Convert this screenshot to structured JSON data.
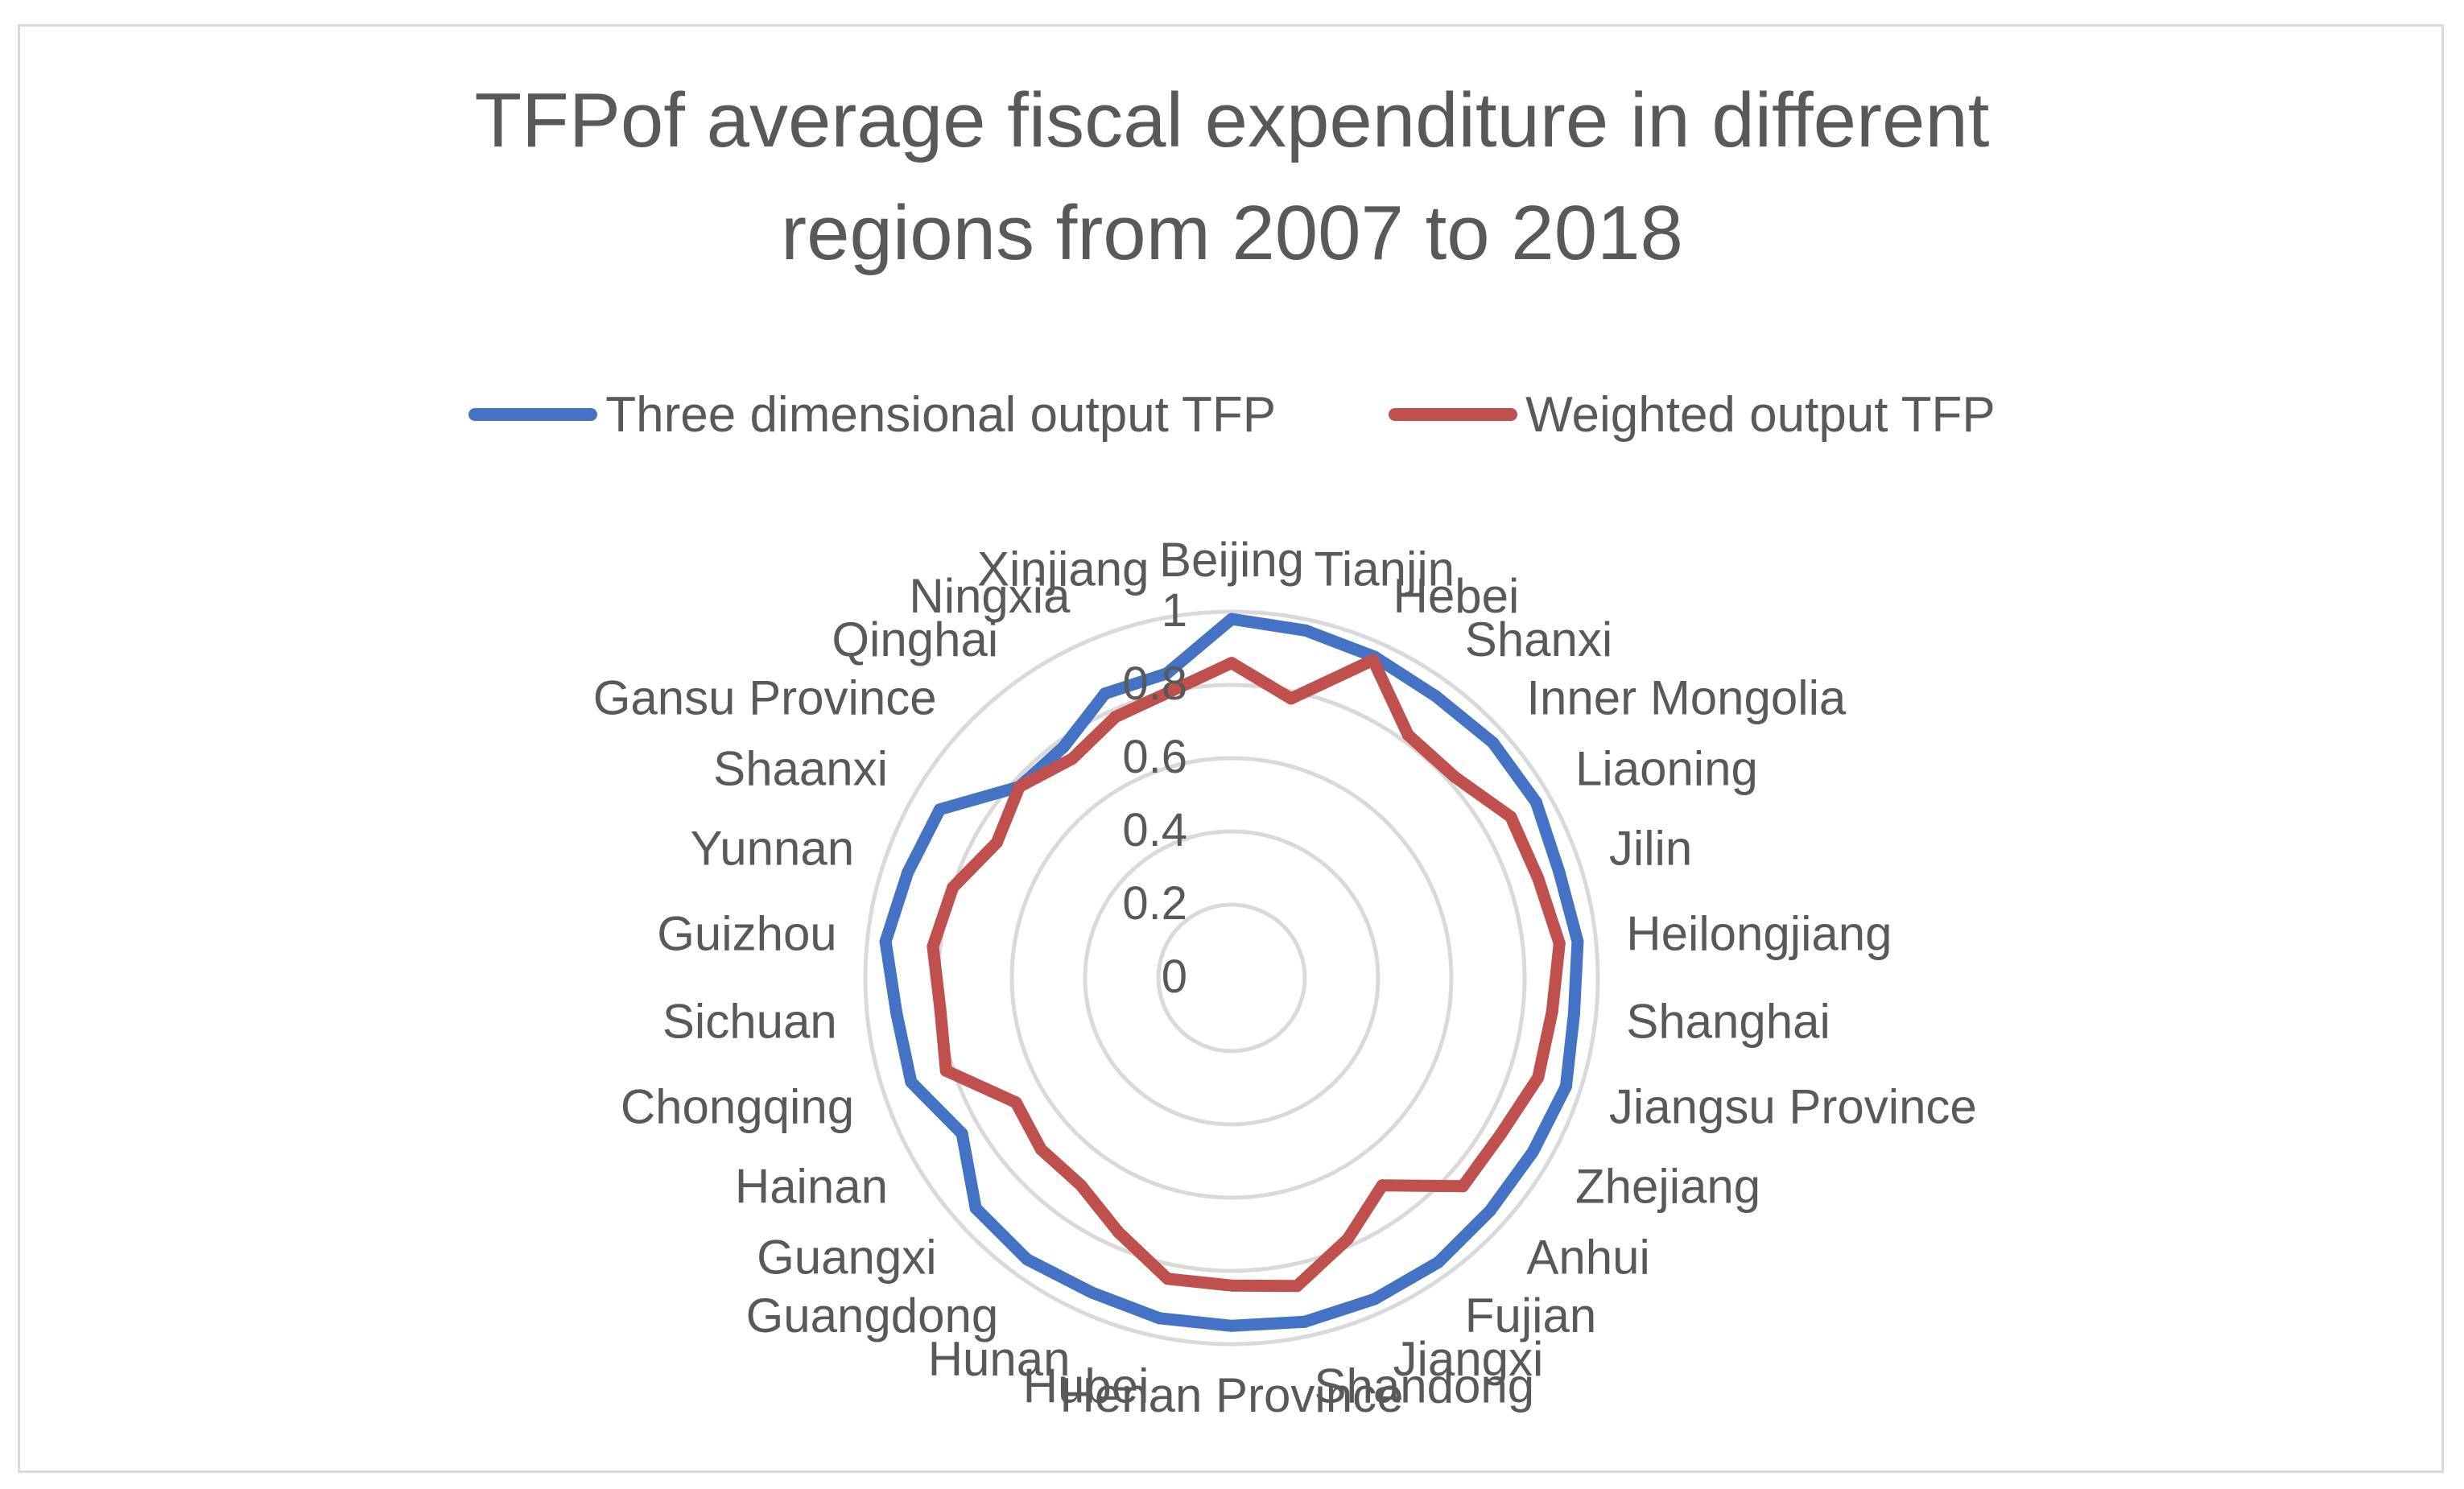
{
  "chart_data": {
    "type": "radar",
    "title_lines": [
      "TFPof average fiscal expenditure in different",
      "regions from 2007 to 2018"
    ],
    "categories": [
      "Beijing",
      "Tianjin",
      "Hebei",
      "Shanxi",
      "Inner Mongolia",
      "Liaoning",
      "Jilin",
      "Heilongjiang",
      "Shanghai",
      "Jiangsu Province",
      "Zhejiang",
      "Anhui",
      "Fujian",
      "Jiangxi",
      "Shandong",
      "Henan Province",
      "Hubei",
      "Hunan",
      "Guangdong",
      "Guangxi",
      "Hainan",
      "Chongqing",
      "Sichuan",
      "Guizhou",
      "Yunnan",
      "Shaanxi",
      "Gansu Province",
      "Qinghai",
      "Ningxia",
      "Xinjiang"
    ],
    "series": [
      {
        "name": "Three dimensional output TFP",
        "color": "#4472c4",
        "values": [
          0.98,
          0.97,
          0.96,
          0.95,
          0.96,
          0.96,
          0.94,
          0.95,
          0.94,
          0.96,
          0.95,
          0.95,
          0.96,
          0.96,
          0.96,
          0.95,
          0.95,
          0.94,
          0.95,
          0.94,
          0.85,
          0.92,
          0.92,
          0.95,
          0.93,
          0.92,
          0.78,
          0.78,
          0.85,
          0.85
        ]
      },
      {
        "name": "Weighted output TFP",
        "color": "#c0504d",
        "values": [
          0.86,
          0.78,
          0.95,
          0.82,
          0.82,
          0.88,
          0.88,
          0.9,
          0.88,
          0.88,
          0.85,
          0.85,
          0.7,
          0.78,
          0.86,
          0.84,
          0.84,
          0.76,
          0.7,
          0.7,
          0.68,
          0.82,
          0.8,
          0.82,
          0.8,
          0.74,
          0.78,
          0.74,
          0.78,
          0.8
        ]
      }
    ],
    "r_ticks": [
      0,
      0.2,
      0.4,
      0.6,
      0.8,
      1
    ],
    "r_tick_labels": [
      "0",
      "0.2",
      "0.4",
      "0.6",
      "0.8",
      "1"
    ],
    "rlim": [
      0,
      1
    ],
    "legend_position": "top"
  }
}
